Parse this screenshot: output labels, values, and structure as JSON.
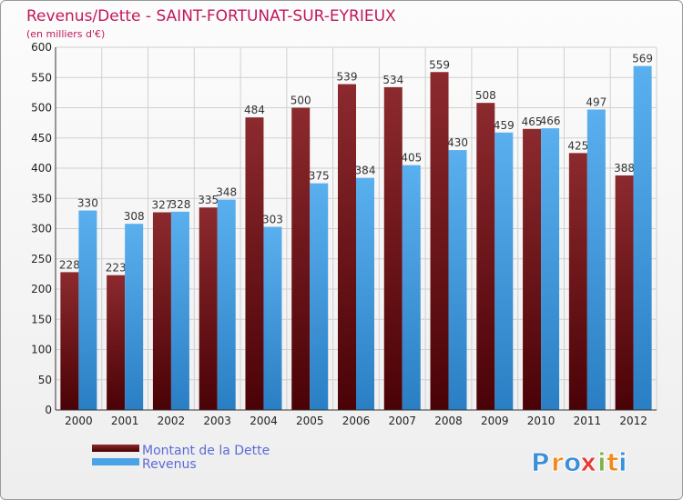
{
  "chart_data": {
    "type": "bar",
    "title": "Revenus/Dette - SAINT-FORTUNAT-SUR-EYRIEUX",
    "subtitle": "(en milliers d'€)",
    "categories": [
      "2000",
      "2001",
      "2002",
      "2003",
      "2004",
      "2005",
      "2006",
      "2007",
      "2008",
      "2009",
      "2010",
      "2011",
      "2012"
    ],
    "series": [
      {
        "name": "Montant de la Dette",
        "color": "#7a1419",
        "values": [
          228,
          223,
          327,
          335,
          484,
          500,
          539,
          534,
          559,
          508,
          465,
          425,
          388
        ]
      },
      {
        "name": "Revenus",
        "color": "#4aa3e6",
        "values": [
          330,
          308,
          328,
          348,
          303,
          375,
          384,
          405,
          430,
          459,
          466,
          497,
          569
        ]
      }
    ],
    "ylim": [
      0,
      600
    ],
    "yticks": [
      0,
      50,
      100,
      150,
      200,
      250,
      300,
      350,
      400,
      450,
      500,
      550,
      600
    ],
    "grid": true,
    "legend": "bottom-left"
  },
  "logo": {
    "text": "Proxiti",
    "letters": [
      "P",
      "r",
      "o",
      "x",
      "i",
      "t",
      "i"
    ],
    "colors": [
      "#3a8fd8",
      "#f08a1c",
      "#3a8fd8",
      "#e53935",
      "#7cb342",
      "#f08a1c",
      "#3a8fd8"
    ]
  }
}
